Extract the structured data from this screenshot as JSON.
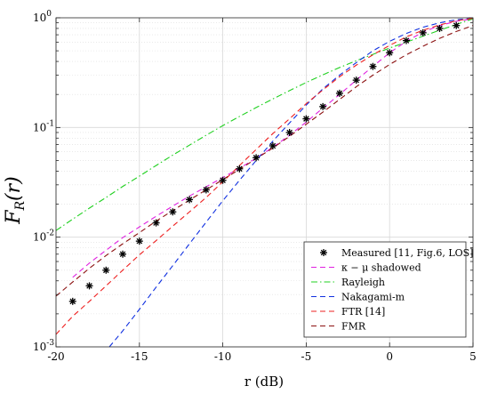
{
  "chart_data": {
    "type": "line",
    "xlabel": "r (dB)",
    "ylabel": "F_R(r)",
    "xlim": [
      -20,
      5
    ],
    "ylim": [
      0.001,
      1
    ],
    "yscale": "log",
    "grid": true,
    "legend_position": "bottom-right",
    "x_ticks": [
      -20,
      -15,
      -10,
      -5,
      0,
      5
    ],
    "y_ticks": [
      {
        "value": 0.001,
        "mantissa": "10",
        "exponent": "-3"
      },
      {
        "value": 0.01,
        "mantissa": "10",
        "exponent": "-2"
      },
      {
        "value": 0.1,
        "mantissa": "10",
        "exponent": "-1"
      },
      {
        "value": 1,
        "mantissa": "10",
        "exponent": "0"
      }
    ],
    "series": [
      {
        "name": "Measured [11, Fig.6, LOS]",
        "style": "markers",
        "marker": "*",
        "color": "#000000",
        "x": [
          -19,
          -18,
          -17,
          -16,
          -15,
          -14,
          -13,
          -12,
          -11,
          -10,
          -9,
          -8,
          -7,
          -6,
          -5,
          -4,
          -3,
          -2,
          -1,
          0,
          1,
          2,
          3,
          4
        ],
        "y": [
          0.0026,
          0.0036,
          0.005,
          0.007,
          0.0092,
          0.0135,
          0.017,
          0.022,
          0.027,
          0.033,
          0.042,
          0.053,
          0.068,
          0.09,
          0.12,
          0.155,
          0.205,
          0.27,
          0.36,
          0.48,
          0.62,
          0.73,
          0.8,
          0.85
        ]
      },
      {
        "name": "κ − μ shadowed",
        "style": "dashed",
        "color": "#e020e0",
        "x": [
          -19,
          -18,
          -17,
          -16,
          -15,
          -14,
          -13,
          -12,
          -11,
          -10,
          -9,
          -8,
          -7,
          -6,
          -5,
          -4,
          -3,
          -2,
          -1,
          0,
          1,
          2,
          3,
          4,
          5
        ],
        "y": [
          0.0043,
          0.0058,
          0.0076,
          0.0099,
          0.0124,
          0.0155,
          0.0192,
          0.0237,
          0.0288,
          0.035,
          0.0425,
          0.0525,
          0.066,
          0.085,
          0.112,
          0.15,
          0.2,
          0.27,
          0.36,
          0.48,
          0.61,
          0.74,
          0.85,
          0.93,
          0.98
        ]
      },
      {
        "name": "Rayleigh",
        "style": "dashdot",
        "color": "#20d020",
        "x": [
          -20,
          -19,
          -18,
          -17,
          -16,
          -15,
          -14,
          -13,
          -12,
          -11,
          -10,
          -9,
          -8,
          -7,
          -6,
          -5,
          -4,
          -3,
          -2,
          -1,
          0,
          1,
          2,
          3,
          4,
          5
        ],
        "y": [
          0.0115,
          0.0146,
          0.0184,
          0.023,
          0.029,
          0.036,
          0.045,
          0.056,
          0.069,
          0.085,
          0.104,
          0.126,
          0.152,
          0.182,
          0.217,
          0.257,
          0.302,
          0.352,
          0.406,
          0.464,
          0.53,
          0.6,
          0.68,
          0.77,
          0.87,
          0.98
        ]
      },
      {
        "name": "Nakagami-m",
        "style": "dashed",
        "color": "#1030e0",
        "x": [
          -16.8,
          -16,
          -15,
          -14,
          -13,
          -12,
          -11,
          -10,
          -9,
          -8,
          -7,
          -6,
          -5,
          -4,
          -3,
          -2,
          -1,
          0,
          1,
          2,
          3,
          4,
          5
        ],
        "y": [
          0.001,
          0.0014,
          0.0022,
          0.0035,
          0.0055,
          0.0087,
          0.0137,
          0.0215,
          0.033,
          0.05,
          0.075,
          0.11,
          0.16,
          0.225,
          0.3,
          0.39,
          0.5,
          0.61,
          0.72,
          0.82,
          0.9,
          0.96,
          0.99
        ]
      },
      {
        "name": "FTR [14]",
        "style": "dashed",
        "color": "#ee2020",
        "x": [
          -20,
          -19,
          -18,
          -17,
          -16,
          -15,
          -14,
          -13,
          -12,
          -11,
          -10,
          -9,
          -8,
          -7,
          -6,
          -5,
          -4,
          -3,
          -2,
          -1,
          0,
          1,
          2,
          3,
          4,
          5
        ],
        "y": [
          0.0013,
          0.0019,
          0.0026,
          0.0036,
          0.005,
          0.0069,
          0.0093,
          0.0126,
          0.017,
          0.023,
          0.032,
          0.045,
          0.063,
          0.088,
          0.12,
          0.165,
          0.22,
          0.29,
          0.37,
          0.46,
          0.56,
          0.67,
          0.77,
          0.86,
          0.94,
          0.99
        ]
      },
      {
        "name": "FMR",
        "style": "dashed",
        "color": "#8b1010",
        "x": [
          -20,
          -19,
          -18,
          -17,
          -16,
          -15,
          -14,
          -13,
          -12,
          -11,
          -10,
          -9,
          -8,
          -7,
          -6,
          -5,
          -4,
          -3,
          -2,
          -1,
          0,
          1,
          2,
          3,
          4,
          5
        ],
        "y": [
          0.0029,
          0.0039,
          0.0052,
          0.0068,
          0.0087,
          0.011,
          0.014,
          0.0175,
          0.0218,
          0.027,
          0.0335,
          0.0415,
          0.052,
          0.065,
          0.083,
          0.107,
          0.138,
          0.18,
          0.235,
          0.3,
          0.375,
          0.46,
          0.55,
          0.65,
          0.75,
          0.85
        ]
      }
    ]
  }
}
